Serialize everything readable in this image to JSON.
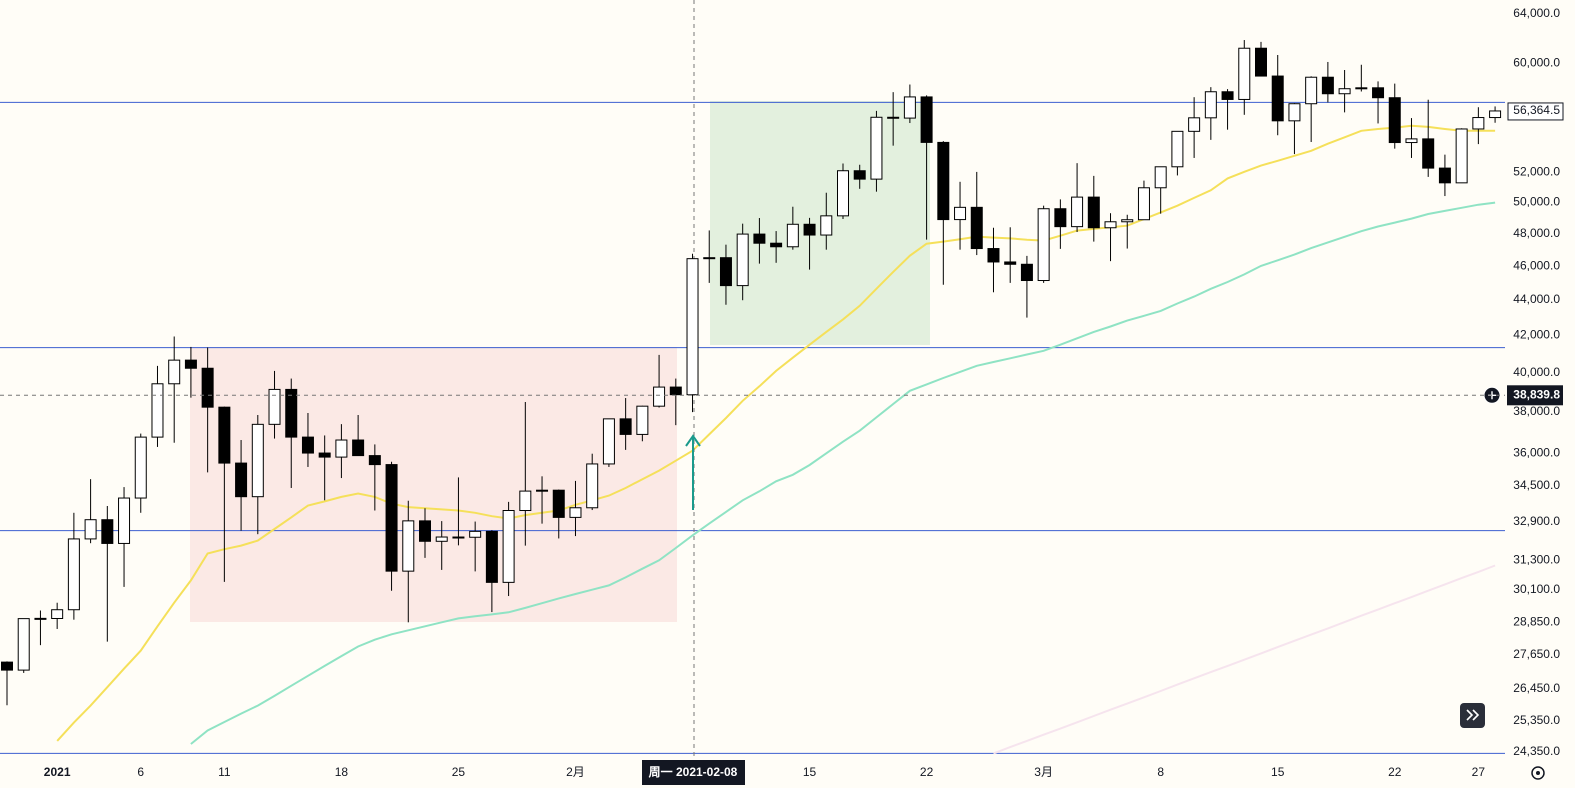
{
  "chart_data": {
    "type": "candlestick",
    "log": true,
    "ylim": [
      24090,
      65180
    ],
    "yticks": [
      {
        "value": 64000,
        "label": "64,000.0"
      },
      {
        "value": 60000,
        "label": "60,000.0"
      },
      {
        "value": 52000,
        "label": "52,000.0"
      },
      {
        "value": 50000,
        "label": "50,000.0"
      },
      {
        "value": 48000,
        "label": "48,000.0"
      },
      {
        "value": 46000,
        "label": "46,000.0"
      },
      {
        "value": 44000,
        "label": "44,000.0"
      },
      {
        "value": 42000,
        "label": "42,000.0"
      },
      {
        "value": 40000,
        "label": "40,000.0"
      },
      {
        "value": 38000,
        "label": "38,000.0"
      },
      {
        "value": 36000,
        "label": "36,000.0"
      },
      {
        "value": 34500,
        "label": "34,500.0"
      },
      {
        "value": 32900,
        "label": "32,900.0"
      },
      {
        "value": 31300,
        "label": "31,300.0"
      },
      {
        "value": 30100,
        "label": "30,100.0"
      },
      {
        "value": 28850,
        "label": "28,850.0"
      },
      {
        "value": 27650,
        "label": "27,650.0"
      },
      {
        "value": 26450,
        "label": "26,450.0"
      },
      {
        "value": 25350,
        "label": "25,350.0"
      },
      {
        "value": 24350,
        "label": "24,350.0"
      }
    ],
    "categories": [
      null,
      null,
      null,
      "2021",
      null,
      null,
      null,
      null,
      "6",
      null,
      null,
      null,
      null,
      "11",
      null,
      null,
      null,
      null,
      null,
      null,
      "18",
      null,
      null,
      null,
      null,
      null,
      null,
      "25",
      null,
      null,
      null,
      null,
      null,
      null,
      "2月",
      null,
      null,
      null,
      null,
      null,
      null,
      null,
      null,
      null,
      null,
      null,
      null,
      null,
      "15",
      null,
      null,
      null,
      null,
      null,
      null,
      "22",
      null,
      null,
      null,
      null,
      null,
      null,
      "3月",
      null,
      null,
      null,
      null,
      null,
      null,
      "8",
      null,
      null,
      null,
      null,
      null,
      null,
      "15",
      null,
      null,
      null,
      null,
      null,
      null,
      "22",
      null,
      null,
      null,
      null,
      "27",
      null
    ],
    "open": [
      27385,
      27100,
      28990,
      28995,
      29330,
      32180,
      33000,
      31990,
      33950,
      36770,
      39430,
      40670,
      40240,
      38240,
      35540,
      34010,
      37390,
      39140,
      36770,
      36010,
      35820,
      36630,
      35890,
      35470,
      30850,
      32950,
      32080,
      32260,
      32250,
      32500,
      30400,
      33400,
      34260,
      34300,
      33100,
      33520,
      35500,
      37660,
      36900,
      38290,
      39260,
      38870,
      46450,
      46510,
      44840,
      47970,
      47400,
      47180,
      48590,
      47910,
      49130,
      52120,
      51550,
      55900,
      55840,
      57410,
      54090,
      48890,
      49680,
      47070,
      46250,
      46110,
      45140,
      49590,
      48440,
      50350,
      48370,
      48750,
      48880,
      50970,
      52390,
      54880,
      55860,
      57800,
      57220,
      61190,
      59000,
      55640,
      56900,
      58910,
      57650,
      58030,
      58100,
      57350,
      54080,
      54340,
      52300,
      51300,
      55050,
      55880
    ],
    "high": [
      27410,
      28990,
      29300,
      29600,
      33300,
      34800,
      33600,
      34440,
      36940,
      40365,
      41950,
      41380,
      41350,
      38270,
      36630,
      37850,
      40100,
      39700,
      37950,
      36850,
      37400,
      37850,
      36420,
      35600,
      33830,
      33500,
      32940,
      34880,
      32920,
      32550,
      33780,
      38500,
      34930,
      34330,
      34720,
      35980,
      37660,
      38700,
      38310,
      40950,
      39700,
      46750,
      48200,
      47310,
      48630,
      48990,
      48160,
      49720,
      49000,
      50640,
      52620,
      52530,
      56370,
      57770,
      58350,
      57530,
      54180,
      51370,
      52040,
      48370,
      48400,
      46620,
      49790,
      50200,
      52640,
      51770,
      49300,
      49200,
      51450,
      52400,
      54900,
      57390,
      58150,
      58000,
      61850,
      61700,
      60650,
      56940,
      58980,
      60100,
      59470,
      59880,
      58590,
      58420,
      55840,
      57200,
      53230,
      55100,
      56640,
      56700
    ],
    "low": [
      25880,
      27000,
      28000,
      28600,
      28950,
      32000,
      28130,
      30220,
      33300,
      36300,
      36500,
      38720,
      35110,
      30420,
      32530,
      32380,
      36700,
      34400,
      35360,
      33850,
      34850,
      35900,
      33400,
      30070,
      28850,
      31390,
      30900,
      31910,
      30840,
      29240,
      29860,
      31900,
      32830,
      32200,
      32300,
      33420,
      35360,
      36160,
      36570,
      38220,
      37350,
      37990,
      45000,
      43730,
      43990,
      46150,
      46200,
      47000,
      45790,
      47000,
      48930,
      50900,
      50710,
      53860,
      55480,
      47620,
      44890,
      47000,
      46670,
      44450,
      45000,
      43000,
      45000,
      47050,
      48100,
      47500,
      46300,
      47070,
      48880,
      49270,
      51800,
      53000,
      54270,
      55000,
      56080,
      59000,
      54600,
      53270,
      54120,
      57000,
      56260,
      57820,
      55450,
      53650,
      53000,
      51700,
      50420,
      51300,
      53970,
      55500
    ],
    "close": [
      27100,
      28990,
      29000,
      29330,
      32180,
      33000,
      31990,
      33950,
      36770,
      39430,
      40670,
      40240,
      38240,
      35540,
      34010,
      37390,
      39140,
      36770,
      36010,
      35820,
      36630,
      35890,
      35470,
      30850,
      32950,
      32080,
      32260,
      32250,
      32500,
      30400,
      33400,
      34260,
      34300,
      33100,
      33520,
      35500,
      37660,
      36900,
      38290,
      39260,
      38870,
      46450,
      46510,
      44840,
      47970,
      47400,
      47180,
      48590,
      47910,
      49130,
      52120,
      51550,
      55900,
      55840,
      57410,
      54090,
      48890,
      49680,
      47070,
      46250,
      46110,
      45140,
      49590,
      48440,
      50350,
      48370,
      48750,
      48880,
      50970,
      52390,
      54880,
      55860,
      57800,
      57220,
      61190,
      59000,
      55640,
      56900,
      58910,
      57650,
      58030,
      58100,
      57350,
      54080,
      54340,
      52300,
      51300,
      55050,
      55880,
      56364.5
    ],
    "ma_lines": [
      {
        "color": "#f5e05a",
        "values": [
          null,
          null,
          null,
          24700,
          25300,
          25870,
          26500,
          27150,
          27800,
          28700,
          29600,
          30480,
          31570,
          31750,
          31900,
          32110,
          32600,
          33100,
          33620,
          33800,
          34000,
          34150,
          34000,
          33700,
          33550,
          33500,
          33450,
          33400,
          33300,
          33150,
          33050,
          33200,
          33300,
          33400,
          33650,
          33850,
          34060,
          34400,
          34800,
          35190,
          35650,
          36120,
          36900,
          37700,
          38560,
          39300,
          40100,
          40800,
          41500,
          42200,
          42900,
          43670,
          44650,
          45650,
          46630,
          47370,
          47500,
          47650,
          47810,
          47750,
          47700,
          47620,
          47560,
          47870,
          48190,
          48300,
          48400,
          48500,
          48920,
          49350,
          49790,
          50300,
          50800,
          51600,
          52050,
          52470,
          52800,
          53150,
          53500,
          54000,
          54450,
          54920,
          55050,
          55150,
          55280,
          55200,
          55050,
          54920,
          54920,
          54920
        ]
      },
      {
        "color": "#8fe3c4",
        "values": [
          null,
          null,
          null,
          null,
          null,
          null,
          null,
          null,
          null,
          null,
          null,
          24600,
          25040,
          25320,
          25600,
          25870,
          26200,
          26550,
          26900,
          27250,
          27600,
          27950,
          28200,
          28400,
          28550,
          28700,
          28850,
          29000,
          29080,
          29150,
          29230,
          29400,
          29580,
          29770,
          29940,
          30110,
          30280,
          30600,
          30950,
          31290,
          31800,
          32330,
          32830,
          33340,
          33850,
          34250,
          34700,
          35000,
          35450,
          36000,
          36550,
          37080,
          37730,
          38400,
          39070,
          39400,
          39730,
          40050,
          40370,
          40570,
          40770,
          40970,
          41170,
          41500,
          41850,
          42200,
          42500,
          42830,
          43100,
          43380,
          43800,
          44200,
          44650,
          45050,
          45500,
          46010,
          46350,
          46700,
          47100,
          47450,
          47800,
          48150,
          48450,
          48700,
          48950,
          49250,
          49450,
          49650,
          49850,
          49990
        ]
      },
      {
        "color": "#f6e4ee",
        "values": [
          null,
          null,
          null,
          null,
          null,
          null,
          null,
          null,
          null,
          null,
          null,
          null,
          null,
          null,
          null,
          null,
          null,
          null,
          null,
          null,
          null,
          null,
          null,
          null,
          null,
          null,
          null,
          null,
          null,
          null,
          null,
          null,
          null,
          null,
          null,
          null,
          null,
          null,
          null,
          null,
          null,
          null,
          null,
          null,
          null,
          null,
          null,
          null,
          null,
          null,
          null,
          null,
          null,
          null,
          null,
          null,
          null,
          null,
          null,
          24300,
          24500,
          24700,
          24900,
          25100,
          25310,
          25520,
          25730,
          25940,
          26150,
          26370,
          26590,
          26810,
          27030,
          27250,
          27470,
          27700,
          27930,
          28160,
          28390,
          28620,
          28860,
          29100,
          29340,
          29580,
          29820,
          30070,
          30320,
          30570,
          30820,
          31080
        ]
      }
    ],
    "levels": [
      57000,
      41340,
      32530,
      24300
    ],
    "last_price": {
      "value": 56364.5,
      "label": "56,364.5"
    },
    "crosshair": {
      "value": 38839.8,
      "label": "38,839.8",
      "date_label": "周一 2021-02-08"
    }
  }
}
